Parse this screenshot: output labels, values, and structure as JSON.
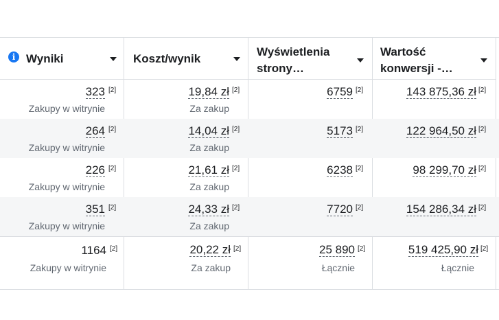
{
  "headers": {
    "results": "Wyniki",
    "cost_per_result": "Koszt/wynik",
    "page_views_line1": "Wyświetlenia",
    "page_views_line2": "strony…",
    "conversion_value_line1": "Wartość",
    "conversion_value_line2": "konwersji -…"
  },
  "info_icon_glyph": "i",
  "footnote": "[2]",
  "rows": [
    {
      "results": "323",
      "results_label": "Zakupy w witrynie",
      "cost": "19,84 zł",
      "cost_label": "Za zakup",
      "views": "6759",
      "conv_value": "143 875,36 zł"
    },
    {
      "results": "264",
      "results_label": "Zakupy w witrynie",
      "cost": "14,04 zł",
      "cost_label": "Za zakup",
      "views": "5173",
      "conv_value": "122 964,50 zł"
    },
    {
      "results": "226",
      "results_label": "Zakupy w witrynie",
      "cost": "21,61 zł",
      "cost_label": "Za zakup",
      "views": "6238",
      "conv_value": "98 299,70 zł"
    },
    {
      "results": "351",
      "results_label": "Zakupy w witrynie",
      "cost": "24,33 zł",
      "cost_label": "Za zakup",
      "views": "7720",
      "conv_value": "154 286,34 zł"
    }
  ],
  "totals": {
    "results": "1164",
    "results_label": "Zakupy w witrynie",
    "cost": "20,22 zł",
    "cost_label": "Za zakup",
    "views": "25 890",
    "views_label": "Łącznie",
    "conv_value": "519 425,90 zł",
    "conv_value_label": "Łącznie"
  },
  "colors": {
    "info_icon": "#1877f2",
    "border": "#dadde1",
    "alt_row": "#f5f6f7",
    "secondary_text": "#606770"
  }
}
